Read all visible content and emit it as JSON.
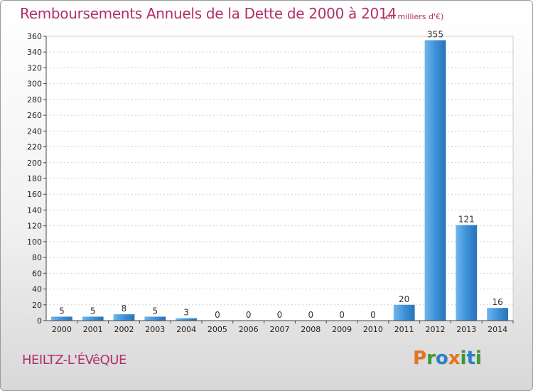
{
  "header": {
    "title": "Remboursements Annuels de la Dette de 2000 à 2014",
    "unit": "(en milliers d'€)"
  },
  "footer": {
    "commune": "HEILTZ-L'ÉVêQUE",
    "logo_letters": [
      "P",
      "r",
      "o",
      "x",
      "i",
      "t",
      "i"
    ],
    "logo_colors": [
      "#e8731e",
      "#3c9a2e",
      "#2d80c8",
      "#e8731e",
      "#3c9a2e",
      "#2d80c8",
      "#3c9a2e"
    ]
  },
  "chart_data": {
    "type": "bar",
    "categories": [
      "2000",
      "2001",
      "2002",
      "2003",
      "2004",
      "2005",
      "2006",
      "2007",
      "2008",
      "2009",
      "2010",
      "2011",
      "2012",
      "2013",
      "2014"
    ],
    "values": [
      5,
      5,
      8,
      5,
      3,
      0,
      0,
      0,
      0,
      0,
      0,
      20,
      355,
      121,
      16
    ],
    "value_labels": [
      "5",
      "5",
      "8",
      "5",
      "3",
      "0",
      "0",
      "0",
      "0",
      "0",
      "0",
      "20",
      "355",
      "121",
      "16"
    ],
    "ylim": [
      0,
      360
    ],
    "yticks": [
      0,
      20,
      40,
      60,
      80,
      100,
      120,
      140,
      160,
      180,
      200,
      220,
      240,
      260,
      280,
      300,
      320,
      340,
      360
    ],
    "grid": true,
    "bar_color": "#3a8fd6",
    "bar_color_light": "#6fb6ee"
  }
}
